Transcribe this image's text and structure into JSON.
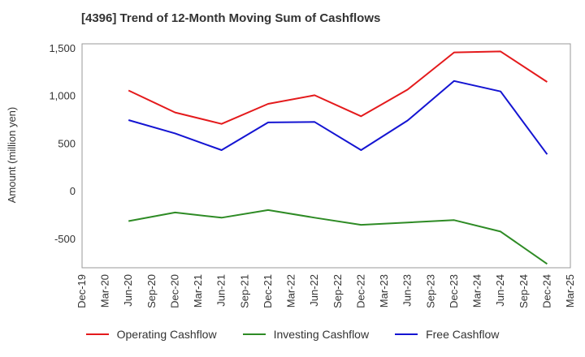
{
  "chart_data": {
    "type": "line",
    "title": "[4396]  Trend of 12-Month Moving Sum of Cashflows",
    "ylabel": "Amount (million yen)",
    "xlabel": "",
    "ylim": [
      -800,
      1550
    ],
    "yticks": [
      1500,
      1000,
      500,
      0,
      -500
    ],
    "ytick_labels": [
      "1,500",
      "1,000",
      "500",
      "0",
      "-500"
    ],
    "categories": [
      "Dec-19",
      "Mar-20",
      "Jun-20",
      "Sep-20",
      "Dec-20",
      "Mar-21",
      "Jun-21",
      "Sep-21",
      "Dec-21",
      "Mar-22",
      "Jun-22",
      "Sep-22",
      "Dec-22",
      "Mar-23",
      "Jun-23",
      "Sep-23",
      "Dec-23",
      "Mar-24",
      "Jun-24",
      "Sep-24",
      "Dec-24",
      "Mar-25"
    ],
    "grid": true,
    "legend_position": "bottom",
    "series": [
      {
        "name": "Operating Cashflow",
        "color": "#e41a1c",
        "values": [
          null,
          null,
          1060,
          null,
          830,
          null,
          710,
          null,
          920,
          null,
          1010,
          null,
          790,
          null,
          1070,
          null,
          1460,
          null,
          1470,
          null,
          1150,
          null
        ]
      },
      {
        "name": "Investing Cashflow",
        "color": "#2e8b25",
        "values": [
          null,
          null,
          -310,
          null,
          -220,
          null,
          -275,
          null,
          -195,
          null,
          -275,
          null,
          -350,
          null,
          -325,
          null,
          -300,
          null,
          -420,
          null,
          -760,
          null
        ]
      },
      {
        "name": "Free Cashflow",
        "color": "#1414d2",
        "values": [
          null,
          null,
          750,
          null,
          610,
          null,
          435,
          null,
          725,
          null,
          730,
          null,
          435,
          null,
          745,
          null,
          1160,
          null,
          1050,
          null,
          390,
          null
        ]
      }
    ]
  }
}
